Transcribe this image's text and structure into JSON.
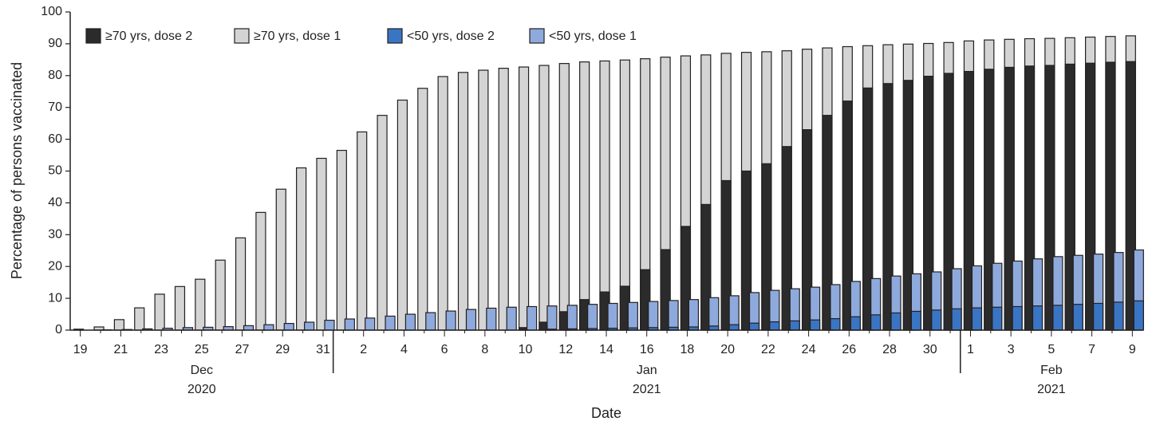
{
  "chart_data": {
    "type": "bar",
    "x_label": "Date",
    "y_label": "Percentage of persons vaccinated",
    "ylim": [
      0,
      100
    ],
    "yticks": [
      0,
      10,
      20,
      30,
      40,
      50,
      60,
      70,
      80,
      90,
      100
    ],
    "legend": "top-left",
    "categories": [
      "19",
      null,
      "21",
      null,
      "23",
      null,
      "25",
      null,
      "27",
      null,
      "29",
      null,
      "31",
      null,
      "2",
      null,
      "4",
      null,
      "6",
      null,
      "8",
      null,
      "10",
      null,
      "12",
      null,
      "14",
      null,
      "16",
      null,
      "18",
      null,
      "20",
      null,
      "22",
      null,
      "24",
      null,
      "26",
      null,
      "28",
      null,
      "30",
      null,
      "1",
      null,
      "3",
      null,
      "5",
      null,
      "7",
      null,
      "9"
    ],
    "month_groups": [
      {
        "month": "Dec",
        "year": "2020",
        "start": 0,
        "end": 12
      },
      {
        "month": "Jan",
        "year": "2021",
        "start": 13,
        "end": 43
      },
      {
        "month": "Feb",
        "year": "2021",
        "start": 44,
        "end": 52
      }
    ],
    "series": [
      {
        "name": "≥70 yrs, dose 2",
        "color": "#2b2b2b",
        "values": [
          0,
          0,
          0,
          0,
          0,
          0,
          0,
          0,
          0,
          0,
          0,
          0,
          0,
          0,
          0,
          0,
          0,
          0,
          0,
          0,
          0,
          0,
          0.8,
          2.5,
          5.8,
          9.6,
          12,
          13.8,
          19,
          25.3,
          32.6,
          39.5,
          47,
          50,
          52.3,
          57.7,
          63,
          67.5,
          72,
          76.1,
          77.5,
          78.5,
          79.8,
          80.7,
          81.3,
          82,
          82.6,
          83,
          83.2,
          83.6,
          83.9,
          84.2,
          84.4
        ]
      },
      {
        "name": "≥70 yrs, dose 1",
        "color": "#d4d4d4",
        "values": [
          0.3,
          1,
          3.3,
          7,
          11.3,
          13.7,
          16,
          22,
          29,
          37,
          44.3,
          51,
          54,
          56.5,
          62.3,
          67.5,
          72.3,
          76,
          79.7,
          81,
          81.7,
          82.3,
          82.7,
          83.2,
          83.8,
          84.3,
          84.6,
          84.9,
          85.3,
          85.8,
          86.2,
          86.5,
          87,
          87.3,
          87.5,
          87.8,
          88.3,
          88.7,
          89.1,
          89.4,
          89.7,
          89.9,
          90.1,
          90.4,
          90.9,
          91.2,
          91.4,
          91.6,
          91.7,
          91.9,
          92.1,
          92.3,
          92.5
        ]
      },
      {
        "name": "<50 yrs, dose 2",
        "color": "#3a75c4",
        "values": [
          0,
          0,
          0,
          0,
          0,
          0,
          0,
          0,
          0,
          0,
          0,
          0,
          0,
          0,
          0,
          0,
          0,
          0,
          0,
          0,
          0,
          0,
          0,
          0.3,
          0.4,
          0.5,
          0.6,
          0.7,
          0.8,
          0.9,
          1,
          1.3,
          1.7,
          2.2,
          2.6,
          2.9,
          3.2,
          3.6,
          4.2,
          4.8,
          5.4,
          5.9,
          6.3,
          6.7,
          7,
          7.2,
          7.4,
          7.6,
          7.8,
          8.1,
          8.4,
          8.8,
          9.2
        ]
      },
      {
        "name": "<50 yrs, dose 1",
        "color": "#8eaadc",
        "values": [
          0,
          0.1,
          0.2,
          0.4,
          0.6,
          0.8,
          0.9,
          1.1,
          1.4,
          1.7,
          2.1,
          2.5,
          3.1,
          3.5,
          3.8,
          4.4,
          5,
          5.5,
          6,
          6.5,
          6.9,
          7.2,
          7.4,
          7.6,
          7.8,
          8.1,
          8.4,
          8.7,
          9,
          9.3,
          9.6,
          10.2,
          10.8,
          11.8,
          12.5,
          13,
          13.5,
          14.3,
          15.3,
          16.2,
          17,
          17.7,
          18.3,
          19.3,
          20.2,
          21,
          21.7,
          22.4,
          23.1,
          23.5,
          23.9,
          24.4,
          25.2
        ]
      }
    ]
  }
}
